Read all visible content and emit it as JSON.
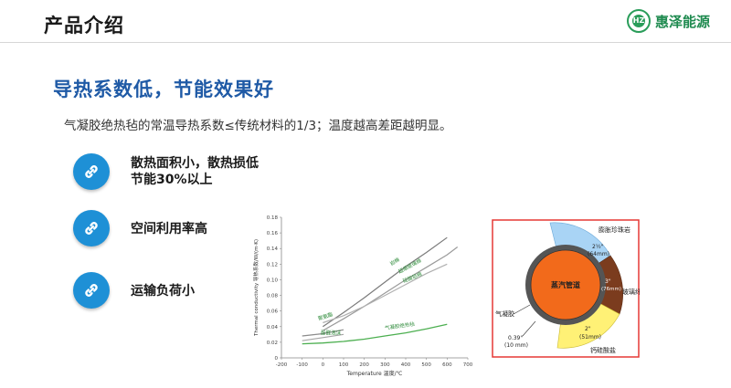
{
  "header": {
    "title": "产品介绍",
    "logo_text": "惠泽能源",
    "logo_mark": "HZ"
  },
  "headline": "导热系数低，节能效果好",
  "subtitle": "气凝胶绝热毡的常温导热系数≤传统材料的1/3；温度越高差距越明显。",
  "features": [
    {
      "line1": "散热面积小，散热损低",
      "line2": "节能30%以上",
      "icon": "link-icon"
    },
    {
      "line1": "空间利用率高",
      "line2": "",
      "icon": "link-icon"
    },
    {
      "line1": "运输负荷小",
      "line2": "",
      "icon": "link-icon"
    }
  ],
  "chart_data": {
    "type": "line",
    "xlabel": "Temperature 温度/℃",
    "ylabel": "Thermal conductivity 导热系数/W/(m·K)",
    "xlim": [
      -200,
      700
    ],
    "ylim": [
      0,
      0.18
    ],
    "xticks": [
      -200,
      -100,
      0,
      100,
      200,
      300,
      400,
      500,
      600,
      700
    ],
    "yticks": [
      0,
      0.02,
      0.04,
      0.06,
      0.08,
      0.1,
      0.12,
      0.14,
      0.16,
      0.18
    ],
    "series": [
      {
        "name": "岩棉",
        "color": "#7a7a7a",
        "x": [
          0,
          100,
          200,
          300,
          400,
          500,
          600
        ],
        "y": [
          0.04,
          0.058,
          0.077,
          0.097,
          0.117,
          0.135,
          0.154
        ]
      },
      {
        "name": "超细玻璃棉",
        "color": "#9a9a9a",
        "x": [
          0,
          100,
          200,
          300,
          400,
          500,
          600,
          650
        ],
        "y": [
          0.035,
          0.05,
          0.066,
          0.083,
          0.1,
          0.116,
          0.132,
          0.142
        ]
      },
      {
        "name": "硅酸铝棉",
        "color": "#b0b0b0",
        "x": [
          0,
          100,
          200,
          300,
          400,
          500,
          600
        ],
        "y": [
          0.045,
          0.054,
          0.066,
          0.08,
          0.094,
          0.108,
          0.12
        ]
      },
      {
        "name": "聚氨酯",
        "color": "#8c8c8c",
        "x": [
          -100,
          0,
          100
        ],
        "y": [
          0.028,
          0.031,
          0.036
        ]
      },
      {
        "name": "酚醛泡沫",
        "color": "#a5a5a5",
        "x": [
          -100,
          0,
          100
        ],
        "y": [
          0.022,
          0.026,
          0.03
        ]
      },
      {
        "name": "气凝胶绝热毡",
        "color": "#4caf50",
        "x": [
          -100,
          0,
          100,
          200,
          300,
          400,
          500,
          600
        ],
        "y": [
          0.018,
          0.019,
          0.021,
          0.024,
          0.028,
          0.032,
          0.037,
          0.043
        ]
      }
    ],
    "series_labels": [
      {
        "text": "岩棉",
        "color": "#2e8b3a"
      },
      {
        "text": "超细玻璃棉",
        "color": "#2e8b3a"
      },
      {
        "text": "硅酸铝棉",
        "color": "#2e8b3a"
      },
      {
        "text": "聚氨酯",
        "color": "#2e8b3a"
      },
      {
        "text": "酚醛泡沫",
        "color": "#2e8b3a"
      },
      {
        "text": "气凝胶绝热毡",
        "color": "#2e8b3a"
      }
    ]
  },
  "diagram": {
    "center_label": "蒸汽管道",
    "layers": [
      {
        "label": "膨胀珍珠岩",
        "thickness": "2½\"",
        "mm": "(64mm)",
        "color": "#a9d4f5"
      },
      {
        "label": "玻璃纤维",
        "thickness": "3\"",
        "mm": "(76mm)",
        "color": "#7b3c1e"
      },
      {
        "label": "钙硅酸盐",
        "thickness": "2\"",
        "mm": "(51mm)",
        "color": "#fff176"
      }
    ],
    "aerogel_label": "气凝胶",
    "aerogel_thickness": "0.39\"",
    "aerogel_mm": "(10 mm)",
    "colors": {
      "pipe": "#f26a1b",
      "aerogel": "#555555",
      "border": "#e53935"
    }
  },
  "colors": {
    "headline": "#1f5aa6",
    "icon_bg": "#1e90d6",
    "brand": "#1e8a4f"
  }
}
